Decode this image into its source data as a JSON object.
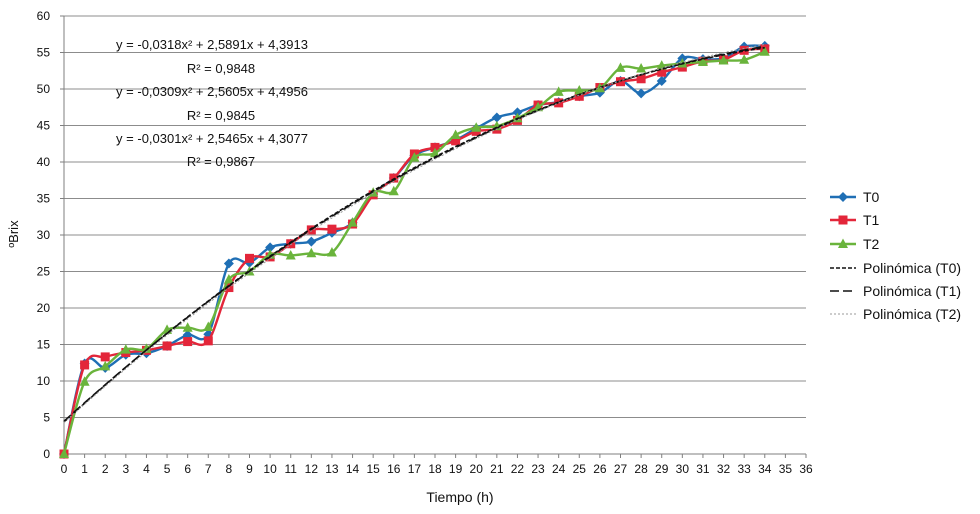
{
  "chart_data": {
    "type": "line",
    "title": "",
    "xlabel": "Tiempo (h)",
    "ylabel": "ºBrix",
    "xlim": [
      0,
      36
    ],
    "ylim": [
      0,
      60
    ],
    "xticks": [
      "0",
      "1",
      "2",
      "3",
      "4",
      "5",
      "6",
      "7",
      "8",
      "9",
      "10",
      "11",
      "12",
      "13",
      "14",
      "15",
      "16",
      "17",
      "18",
      "19",
      "20",
      "21",
      "22",
      "23",
      "24",
      "25",
      "26",
      "27",
      "28",
      "29",
      "30",
      "31",
      "32",
      "33",
      "34",
      "35",
      "36"
    ],
    "yticks": [
      "0",
      "5",
      "10",
      "15",
      "20",
      "25",
      "30",
      "35",
      "40",
      "45",
      "50",
      "55",
      "60"
    ],
    "grid": "horizontal",
    "legend_position": "right",
    "series": [
      {
        "name": "T0",
        "color": "#1f6fb5",
        "marker": "diamond",
        "x": [
          0,
          1,
          2,
          3,
          4,
          5,
          6,
          7,
          8,
          9,
          10,
          11,
          12,
          13,
          14,
          15,
          16,
          17,
          18,
          19,
          20,
          21,
          22,
          23,
          24,
          25,
          26,
          27,
          28,
          29,
          30,
          31,
          32,
          33,
          34
        ],
        "y": [
          0,
          12.4,
          11.8,
          13.6,
          13.8,
          14.8,
          16.3,
          16.4,
          26.1,
          26.2,
          28.3,
          28.8,
          29.1,
          30.3,
          31.7,
          35.6,
          37.8,
          40.9,
          42.0,
          43.0,
          44.6,
          46.1,
          46.8,
          47.8,
          48.2,
          49.0,
          49.5,
          51.1,
          49.4,
          51.1,
          54.2,
          54.1,
          54.2,
          55.8,
          55.9
        ]
      },
      {
        "name": "T1",
        "color": "#e3263a",
        "marker": "square",
        "x": [
          0,
          1,
          2,
          3,
          4,
          5,
          6,
          7,
          8,
          9,
          10,
          11,
          12,
          13,
          14,
          15,
          16,
          17,
          18,
          19,
          20,
          21,
          22,
          23,
          24,
          25,
          26,
          27,
          28,
          29,
          30,
          31,
          32,
          33,
          34
        ],
        "y": [
          0,
          12.2,
          13.3,
          13.9,
          14.2,
          14.8,
          15.4,
          15.5,
          22.8,
          26.8,
          27.0,
          28.8,
          30.7,
          30.8,
          31.5,
          35.5,
          37.8,
          41.1,
          42.0,
          42.9,
          44.2,
          44.5,
          45.7,
          47.8,
          48.1,
          49.0,
          50.2,
          51.0,
          51.4,
          52.3,
          53.0,
          53.8,
          54.0,
          55.3,
          55.5
        ]
      },
      {
        "name": "T2",
        "color": "#6ab43c",
        "marker": "triangle",
        "x": [
          0,
          1,
          2,
          3,
          4,
          5,
          6,
          7,
          8,
          9,
          10,
          11,
          12,
          13,
          14,
          15,
          16,
          17,
          18,
          19,
          20,
          21,
          22,
          23,
          24,
          25,
          26,
          27,
          28,
          29,
          30,
          31,
          32,
          33,
          34
        ],
        "y": [
          0,
          9.9,
          12.0,
          14.3,
          14.4,
          17.0,
          17.3,
          17.4,
          23.9,
          25.0,
          27.3,
          27.2,
          27.5,
          27.6,
          31.7,
          35.8,
          36.0,
          40.6,
          41.2,
          43.7,
          44.7,
          44.9,
          46.0,
          47.5,
          49.6,
          49.8,
          50.1,
          52.9,
          52.8,
          53.2,
          53.5,
          53.7,
          53.9,
          54.0,
          55.1
        ]
      }
    ],
    "trendlines": [
      {
        "name": "Polinómica (T0)",
        "type": "polynomial",
        "order": 2,
        "a": -0.0318,
        "b": 2.5891,
        "c": 4.3913,
        "x_range": [
          0,
          34
        ],
        "style": "dense-dash",
        "color": "#111111"
      },
      {
        "name": "Polinómica (T1)",
        "type": "polynomial",
        "order": 2,
        "a": -0.0309,
        "b": 2.5605,
        "c": 4.4956,
        "x_range": [
          0,
          34
        ],
        "style": "long-dash",
        "color": "#111111"
      },
      {
        "name": "Polinómica (T2)",
        "type": "polynomial",
        "order": 2,
        "a": -0.0301,
        "b": 2.5465,
        "c": 4.3077,
        "x_range": [
          0,
          34
        ],
        "style": "dotted",
        "color": "#999999"
      }
    ],
    "annotations": [
      "y = -0,0318x² + 2,5891x + 4,3913",
      "R² = 0,9848",
      "y = -0,0309x² + 2,5605x + 4,4956",
      "R² = 0,9845",
      "y = -0,0301x² + 2,5465x + 4,3077",
      "R² = 0,9867"
    ]
  }
}
